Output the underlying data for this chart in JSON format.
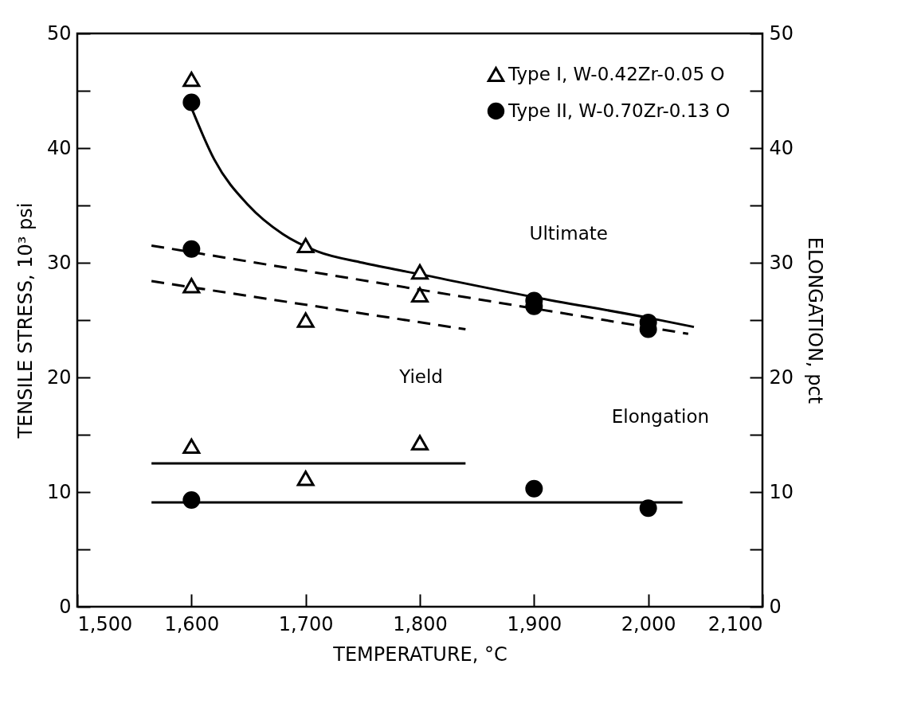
{
  "chart_data": {
    "type": "scatter",
    "xlabel": "TEMPERATURE, °C",
    "ylabel": "TENSILE STRESS, 10³ psi",
    "y2label": "ELONGATION, pct",
    "xlim": [
      1500,
      2100
    ],
    "xticks": [
      {
        "value": 1500,
        "label": "1,500"
      },
      {
        "value": 1600,
        "label": "1,600"
      },
      {
        "value": 1700,
        "label": "1,700"
      },
      {
        "value": 1800,
        "label": "1,800"
      },
      {
        "value": 1900,
        "label": "1,900"
      },
      {
        "value": 2000,
        "label": "2,000"
      },
      {
        "value": 2100,
        "label": "2,100"
      }
    ],
    "ylim": [
      0,
      50
    ],
    "yticks": [
      0,
      {
        "value": 5,
        "label": null
      },
      10,
      {
        "value": 15,
        "label": null
      },
      20,
      {
        "value": 25,
        "label": null
      },
      30,
      {
        "value": 35,
        "label": null
      },
      40,
      {
        "value": 45,
        "label": null
      },
      50
    ],
    "y2lim": [
      0,
      50
    ],
    "y2ticks": [
      0,
      {
        "value": 5,
        "label": null
      },
      10,
      {
        "value": 15,
        "label": null
      },
      20,
      {
        "value": 25,
        "label": null
      },
      30,
      {
        "value": 35,
        "label": null
      },
      40,
      {
        "value": 45,
        "label": null
      },
      50
    ],
    "grid": false,
    "legend": "top right",
    "series": [
      {
        "type": "line",
        "color": "#000000",
        "line_style": "solid",
        "x": [
          1600,
          1620,
          1650,
          1680,
          1710,
          1750,
          1800,
          1900,
          2000,
          2040
        ],
        "values": [
          43.5,
          39,
          35,
          32.5,
          31,
          30,
          29,
          27,
          25.2,
          24.4
        ]
      },
      {
        "type": "line",
        "color": "#000000",
        "line_style": "dashed",
        "x": [
          1565,
          2035
        ],
        "values": [
          31.5,
          23.8
        ]
      },
      {
        "type": "line",
        "color": "#000000",
        "line_style": "dashed",
        "x": [
          1565,
          1840
        ],
        "values": [
          28.4,
          24.2
        ]
      },
      {
        "type": "line",
        "color": "#000000",
        "line_style": "solid",
        "axis": "y2",
        "x": [
          1565,
          1840
        ],
        "values": [
          12.5,
          12.5
        ]
      },
      {
        "type": "line",
        "color": "#000000",
        "line_style": "solid",
        "axis": "y2",
        "x": [
          1565,
          2030
        ],
        "values": [
          9.1,
          9.1
        ]
      },
      {
        "name": "Type I, W-0.42Zr-0.05 O",
        "marker": "triangle",
        "color": "#000000",
        "x": [
          1600,
          1600,
          1700,
          1700,
          1800,
          1800
        ],
        "values": [
          46,
          28,
          31.5,
          25,
          29.2,
          27.2
        ]
      },
      {
        "name": "Type II, W-0.70Zr-0.13 O",
        "marker": "circle",
        "color": "#000000",
        "x": [
          1600,
          1600,
          1900,
          1900,
          2000,
          2000
        ],
        "values": [
          44,
          31.2,
          26.7,
          26.2,
          24.8,
          24.2
        ]
      },
      {
        "marker": "triangle",
        "color": "#000000",
        "axis": "y2",
        "x": [
          1600,
          1700,
          1800
        ],
        "values": [
          14,
          11.2,
          14.3
        ]
      },
      {
        "marker": "circle",
        "color": "#000000",
        "axis": "y2",
        "x": [
          1600,
          1900,
          2000
        ],
        "values": [
          9.3,
          10.3,
          8.6
        ]
      }
    ],
    "annotations": [
      "Ultimate",
      "Yield",
      "Elongation"
    ]
  }
}
